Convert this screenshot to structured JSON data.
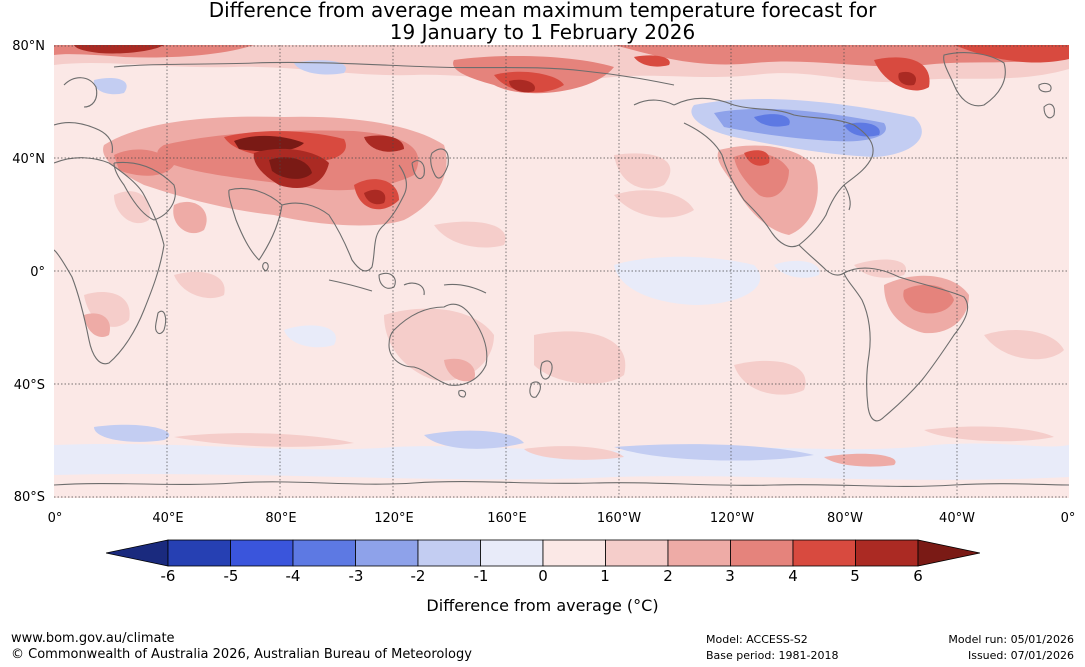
{
  "title": {
    "line1": "Difference from average mean maximum temperature forecast for",
    "line2": "19 January to 1 February 2026"
  },
  "map": {
    "lat_labels": [
      "80°N",
      "40°N",
      "0°",
      "40°S",
      "80°S"
    ],
    "lon_labels": [
      "0°",
      "40°E",
      "80°E",
      "120°E",
      "160°E",
      "160°W",
      "120°W",
      "80°W",
      "40°W",
      "0°"
    ]
  },
  "legend": {
    "ticks": [
      "-6",
      "-5",
      "-4",
      "-3",
      "-2",
      "-1",
      "0",
      "1",
      "2",
      "3",
      "4",
      "5",
      "6"
    ],
    "colors": [
      "#1a2a7e",
      "#2640b3",
      "#3a55dc",
      "#5d79e3",
      "#8ea2ea",
      "#c3cdf2",
      "#e8ebf9",
      "#fbe8e6",
      "#f5cdca",
      "#eeaba6",
      "#e5837c",
      "#d84a3f",
      "#ab2a23",
      "#7a1a15"
    ],
    "label": "Difference from average (°C)"
  },
  "footer": {
    "url": "www.bom.gov.au/climate",
    "copyright": "© Commonwealth of Australia 2026, Australian Bureau of Meteorology",
    "model": "Model: ACCESS-S2",
    "base_period": "Base period: 1981-2018",
    "model_run": "Model run: 05/01/2026",
    "issued": "Issued: 07/01/2026"
  }
}
